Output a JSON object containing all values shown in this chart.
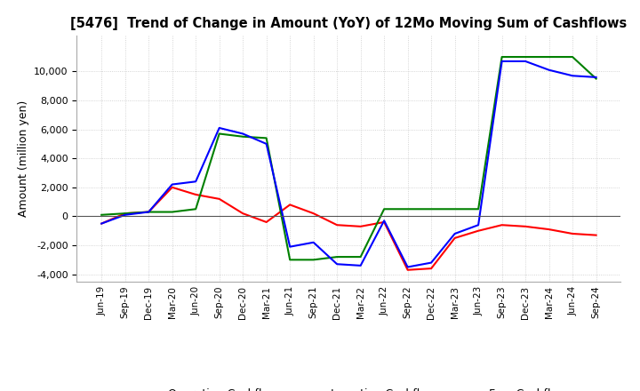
{
  "title": "[5476]  Trend of Change in Amount (YoY) of 12Mo Moving Sum of Cashflows",
  "ylabel": "Amount (million yen)",
  "background_color": "#ffffff",
  "grid_color": "#c8c8c8",
  "ylim": [
    -4500,
    12500
  ],
  "yticks": [
    -4000,
    -2000,
    0,
    2000,
    4000,
    6000,
    8000,
    10000
  ],
  "x_labels": [
    "Jun-19",
    "Sep-19",
    "Dec-19",
    "Mar-20",
    "Jun-20",
    "Sep-20",
    "Dec-20",
    "Mar-21",
    "Jun-21",
    "Sep-21",
    "Dec-21",
    "Mar-22",
    "Jun-22",
    "Sep-22",
    "Dec-22",
    "Mar-23",
    "Jun-23",
    "Sep-23",
    "Dec-23",
    "Mar-24",
    "Jun-24",
    "Sep-24"
  ],
  "operating": [
    -500,
    200,
    300,
    2000,
    1500,
    1200,
    200,
    -400,
    800,
    200,
    -600,
    -700,
    -400,
    -3700,
    -3600,
    -1500,
    -1000,
    -600,
    -700,
    -900,
    -1200,
    -1300
  ],
  "investing": [
    100,
    200,
    300,
    300,
    500,
    5700,
    5500,
    5400,
    -3000,
    -3000,
    -2800,
    -2800,
    500,
    500,
    500,
    500,
    500,
    11000,
    11000,
    11000,
    11000,
    9500
  ],
  "free": [
    -500,
    100,
    300,
    2200,
    2400,
    6100,
    5700,
    5000,
    -2100,
    -1800,
    -3300,
    -3400,
    -300,
    -3500,
    -3200,
    -1200,
    -600,
    10700,
    10700,
    10100,
    9700,
    9600
  ],
  "operating_color": "#ff0000",
  "investing_color": "#008000",
  "free_color": "#0000ff",
  "line_width": 1.5
}
